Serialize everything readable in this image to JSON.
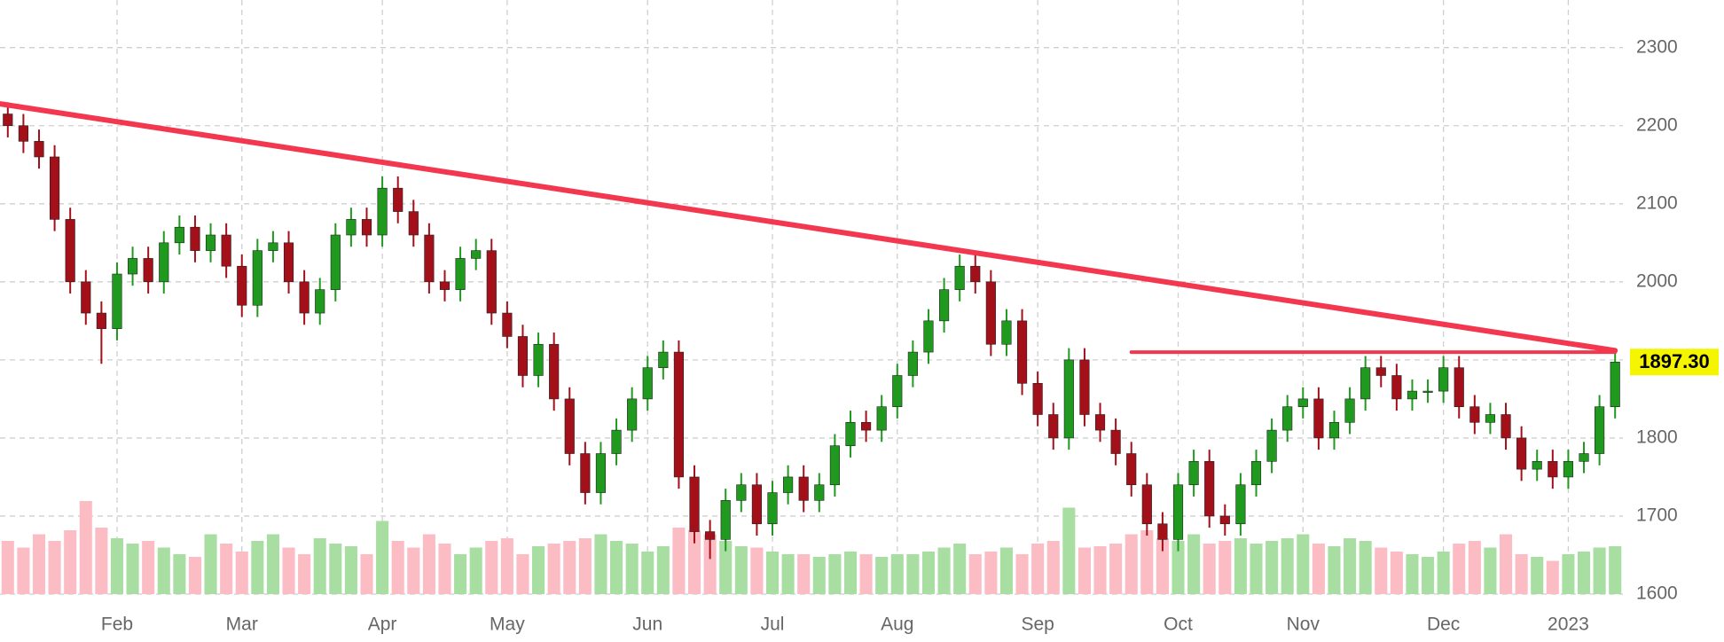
{
  "chart_data": {
    "type": "candlestick",
    "categories": [
      null,
      null,
      null,
      null,
      null,
      null,
      null,
      "Feb",
      null,
      null,
      null,
      null,
      null,
      null,
      null,
      "Mar",
      null,
      null,
      null,
      null,
      null,
      null,
      null,
      null,
      "Apr",
      null,
      null,
      null,
      null,
      null,
      null,
      null,
      "May",
      null,
      null,
      null,
      null,
      null,
      null,
      null,
      null,
      "Jun",
      null,
      null,
      null,
      null,
      null,
      null,
      null,
      "Jul",
      null,
      null,
      null,
      null,
      null,
      null,
      null,
      "Aug",
      null,
      null,
      null,
      null,
      null,
      null,
      null,
      null,
      "Sep",
      null,
      null,
      null,
      null,
      null,
      null,
      null,
      null,
      "Oct",
      null,
      null,
      null,
      null,
      null,
      null,
      null,
      "Nov",
      null,
      null,
      null,
      null,
      null,
      null,
      null,
      null,
      "Dec",
      null,
      null,
      null,
      null,
      null,
      null,
      null,
      "2023",
      null,
      null,
      null
    ],
    "open": [
      2215,
      2200,
      2180,
      2160,
      2080,
      2000,
      1960,
      1940,
      2010,
      2030,
      2000,
      2050,
      2070,
      2040,
      2060,
      2020,
      1970,
      2040,
      2050,
      2000,
      1960,
      1990,
      2060,
      2080,
      2060,
      2120,
      2090,
      2060,
      2000,
      1990,
      2030,
      2040,
      1960,
      1930,
      1880,
      1920,
      1850,
      1780,
      1730,
      1780,
      1810,
      1850,
      1890,
      1910,
      1750,
      1680,
      1670,
      1720,
      1740,
      1690,
      1730,
      1750,
      1720,
      1740,
      1790,
      1820,
      1810,
      1840,
      1880,
      1910,
      1950,
      1990,
      2020,
      2000,
      1920,
      1950,
      1870,
      1830,
      1800,
      1900,
      1830,
      1810,
      1780,
      1740,
      1690,
      1670,
      1740,
      1770,
      1700,
      1690,
      1740,
      1770,
      1810,
      1840,
      1850,
      1800,
      1820,
      1850,
      1890,
      1880,
      1850,
      1860,
      1860,
      1890,
      1840,
      1820,
      1830,
      1800,
      1760,
      1770,
      1750,
      1770,
      1780,
      1840
    ],
    "high": [
      2230,
      2215,
      2195,
      2175,
      2095,
      2015,
      1975,
      2025,
      2045,
      2045,
      2065,
      2085,
      2085,
      2075,
      2075,
      2035,
      2055,
      2065,
      2065,
      2015,
      2005,
      2075,
      2095,
      2095,
      2135,
      2135,
      2105,
      2075,
      2015,
      2045,
      2055,
      2055,
      1975,
      1945,
      1935,
      1935,
      1865,
      1795,
      1795,
      1825,
      1865,
      1905,
      1925,
      1925,
      1765,
      1695,
      1735,
      1755,
      1755,
      1745,
      1765,
      1765,
      1755,
      1805,
      1835,
      1835,
      1855,
      1895,
      1925,
      1965,
      2005,
      2035,
      2035,
      2015,
      1965,
      1965,
      1885,
      1845,
      1915,
      1915,
      1845,
      1825,
      1795,
      1755,
      1705,
      1755,
      1785,
      1785,
      1715,
      1755,
      1785,
      1825,
      1855,
      1865,
      1865,
      1835,
      1865,
      1905,
      1905,
      1895,
      1875,
      1875,
      1905,
      1905,
      1855,
      1845,
      1845,
      1815,
      1785,
      1785,
      1785,
      1795,
      1855,
      1912
    ],
    "low": [
      2185,
      2165,
      2145,
      2065,
      1985,
      1945,
      1895,
      1925,
      1995,
      1985,
      1985,
      2035,
      2025,
      2025,
      2005,
      1955,
      1955,
      2025,
      1985,
      1945,
      1945,
      1975,
      2045,
      2045,
      2045,
      2075,
      2045,
      1985,
      1975,
      1975,
      2015,
      1945,
      1915,
      1865,
      1865,
      1835,
      1765,
      1715,
      1715,
      1765,
      1795,
      1835,
      1875,
      1735,
      1665,
      1645,
      1655,
      1705,
      1675,
      1675,
      1715,
      1705,
      1705,
      1725,
      1775,
      1795,
      1795,
      1825,
      1865,
      1895,
      1935,
      1975,
      1985,
      1905,
      1905,
      1855,
      1815,
      1785,
      1785,
      1815,
      1795,
      1765,
      1725,
      1675,
      1655,
      1655,
      1725,
      1685,
      1675,
      1675,
      1725,
      1755,
      1795,
      1825,
      1785,
      1785,
      1805,
      1835,
      1865,
      1835,
      1835,
      1845,
      1845,
      1825,
      1805,
      1805,
      1785,
      1745,
      1745,
      1735,
      1735,
      1755,
      1765,
      1825
    ],
    "close": [
      2200,
      2180,
      2160,
      2080,
      2000,
      1960,
      1940,
      2010,
      2030,
      2000,
      2050,
      2070,
      2040,
      2060,
      2020,
      1970,
      2040,
      2050,
      2000,
      1960,
      1990,
      2060,
      2080,
      2060,
      2120,
      2090,
      2060,
      2000,
      1990,
      2030,
      2040,
      1960,
      1930,
      1880,
      1920,
      1850,
      1780,
      1730,
      1780,
      1810,
      1850,
      1890,
      1910,
      1750,
      1680,
      1670,
      1720,
      1740,
      1690,
      1730,
      1750,
      1720,
      1740,
      1790,
      1820,
      1810,
      1840,
      1880,
      1910,
      1950,
      1990,
      2020,
      2000,
      1920,
      1950,
      1870,
      1830,
      1800,
      1900,
      1830,
      1810,
      1780,
      1740,
      1690,
      1670,
      1740,
      1770,
      1700,
      1690,
      1740,
      1770,
      1810,
      1840,
      1850,
      1800,
      1820,
      1850,
      1890,
      1880,
      1850,
      1860,
      1860,
      1890,
      1840,
      1820,
      1830,
      1800,
      1760,
      1770,
      1750,
      1770,
      1780,
      1840,
      1897.3
    ],
    "volume": [
      40,
      35,
      45,
      40,
      48,
      70,
      50,
      42,
      38,
      40,
      35,
      30,
      28,
      45,
      38,
      32,
      40,
      45,
      35,
      30,
      42,
      38,
      36,
      30,
      55,
      40,
      35,
      45,
      38,
      30,
      35,
      40,
      42,
      30,
      36,
      38,
      40,
      42,
      45,
      40,
      38,
      32,
      36,
      50,
      48,
      45,
      40,
      36,
      35,
      32,
      30,
      30,
      28,
      30,
      32,
      30,
      28,
      30,
      30,
      32,
      35,
      38,
      30,
      32,
      35,
      30,
      38,
      40,
      65,
      35,
      36,
      38,
      45,
      48,
      42,
      40,
      45,
      38,
      40,
      42,
      38,
      40,
      42,
      45,
      38,
      36,
      42,
      40,
      35,
      32,
      30,
      28,
      32,
      38,
      40,
      35,
      45,
      30,
      28,
      25,
      30,
      32,
      35,
      36
    ],
    "volume_lim": [
      0,
      100
    ],
    "up_color": "#1f9a1f",
    "down_color": "#a3101a",
    "up_volume_color": "#a9dea3",
    "down_volume_color": "#fbbcc4",
    "ylim": [
      1600,
      2361
    ],
    "yticks": [
      1600,
      1700,
      1800,
      1900,
      2000,
      2100,
      2200,
      2300
    ],
    "grid": true,
    "trendlines": [
      {
        "start": [
          0,
          2228
        ],
        "end": [
          103,
          1912
        ],
        "color": "#f2374f",
        "width": 6
      },
      {
        "start": [
          72,
          1910
        ],
        "end": [
          103,
          1910
        ],
        "color": "#f2374f",
        "width": 4
      }
    ],
    "last_price": {
      "value": 1897.3,
      "label": "1897.30",
      "background": "#f5f500"
    }
  }
}
